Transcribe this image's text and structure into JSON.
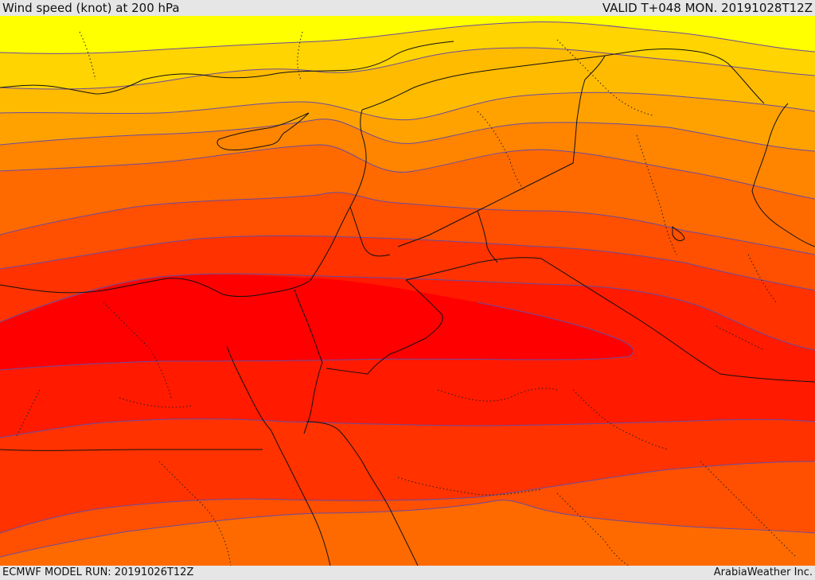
{
  "header": {
    "title": "Wind speed (knot) at 200 hPa",
    "valid": "VALID T+048 MON. 20191028T12Z"
  },
  "footer": {
    "model_run": "ECMWF MODEL RUN: 20191026T12Z",
    "credit": "ArabiaWeather Inc."
  },
  "colors": {
    "band_1": "#ffff00",
    "band_2": "#ffd400",
    "band_3": "#ffbb00",
    "band_4": "#ffa200",
    "band_5": "#ff8400",
    "band_6": "#ff6a00",
    "band_7": "#ff4f00",
    "band_8": "#ff3200",
    "band_9": "#ff1a00",
    "band_10": "#ff0000",
    "contour": "#6a4aa0",
    "border": "#111111"
  }
}
